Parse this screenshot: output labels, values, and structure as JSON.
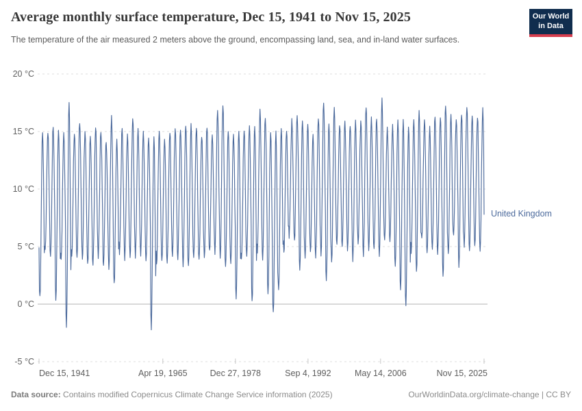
{
  "header": {
    "title": "Average monthly surface temperature, Dec 15, 1941 to Nov 15, 2025",
    "subtitle": "The temperature of the air measured 2 meters above the ground, encompassing land, sea, and in-land water surfaces.",
    "logo": {
      "line1": "Our World",
      "line2": "in Data"
    }
  },
  "footer": {
    "source_label": "Data source:",
    "source_text": " Contains modified Copernicus Climate Change Service information (2025)",
    "right_text": "OurWorldinData.org/climate-change | CC BY"
  },
  "chart_data": {
    "type": "line",
    "title": "Average monthly surface temperature, Dec 15, 1941 to Nov 15, 2025",
    "series_label": "United Kingdom",
    "unit": "°C",
    "ylim": [
      -5,
      20
    ],
    "grid": "dashed-horizontal",
    "y_ticks": [
      {
        "v": 20,
        "label": "20 °C"
      },
      {
        "v": 15,
        "label": "15 °C"
      },
      {
        "v": 10,
        "label": "10 °C"
      },
      {
        "v": 5,
        "label": "5 °C"
      },
      {
        "v": 0,
        "label": "0 °C"
      },
      {
        "v": -5,
        "label": "-5 °C"
      }
    ],
    "x_ticks": [
      {
        "year": 1941.958,
        "label": "Dec 15, 1941",
        "align": "left"
      },
      {
        "year": 1965.3,
        "label": "Apr 19, 1965",
        "align": "center"
      },
      {
        "year": 1978.99,
        "label": "Dec 27, 1978",
        "align": "center"
      },
      {
        "year": 1992.68,
        "label": "Sep 4, 1992",
        "align": "center"
      },
      {
        "year": 2006.36,
        "label": "May 14, 2006",
        "align": "center"
      },
      {
        "year": 2025.87,
        "label": "Nov 15, 2025",
        "align": "right"
      }
    ],
    "x_range_years": [
      1941.958,
      2025.875
    ],
    "start_point": {
      "date": "Dec 1941",
      "value": 4.9
    },
    "end_point": {
      "date": "Nov 2025",
      "value": 7.8
    },
    "years_start": 1942,
    "annual_extremes_note": "per calendar year [winter minimum °C, summer maximum °C] as read from the chart; monthly curve oscillates between them",
    "annual_extremes": [
      [
        0.6,
        15.0
      ],
      [
        4.6,
        14.9
      ],
      [
        4.2,
        15.3
      ],
      [
        0.2,
        15.2
      ],
      [
        4.0,
        14.8
      ],
      [
        -1.9,
        17.6
      ],
      [
        4.3,
        14.9
      ],
      [
        4.1,
        15.8
      ],
      [
        4.0,
        15.1
      ],
      [
        3.4,
        14.6
      ],
      [
        3.3,
        15.4
      ],
      [
        4.1,
        15.0
      ],
      [
        3.3,
        14.2
      ],
      [
        3.0,
        16.4
      ],
      [
        1.8,
        14.3
      ],
      [
        4.3,
        15.2
      ],
      [
        3.9,
        14.8
      ],
      [
        4.0,
        16.2
      ],
      [
        4.1,
        15.2
      ],
      [
        4.2,
        15.0
      ],
      [
        3.7,
        14.3
      ],
      [
        -2.1,
        14.6
      ],
      [
        3.5,
        15.1
      ],
      [
        3.7,
        14.4
      ],
      [
        3.6,
        14.9
      ],
      [
        4.2,
        15.3
      ],
      [
        3.9,
        15.0
      ],
      [
        3.3,
        15.5
      ],
      [
        3.2,
        15.6
      ],
      [
        4.0,
        15.3
      ],
      [
        3.8,
        14.6
      ],
      [
        4.0,
        15.3
      ],
      [
        4.6,
        14.8
      ],
      [
        4.3,
        16.8
      ],
      [
        4.0,
        17.2
      ],
      [
        3.3,
        14.9
      ],
      [
        3.6,
        14.7
      ],
      [
        0.3,
        15.0
      ],
      [
        3.9,
        15.0
      ],
      [
        4.1,
        15.4
      ],
      [
        0.2,
        15.5
      ],
      [
        4.4,
        16.8
      ],
      [
        3.9,
        16.1
      ],
      [
        1.0,
        14.9
      ],
      [
        -0.8,
        14.9
      ],
      [
        1.3,
        15.3
      ],
      [
        4.5,
        14.9
      ],
      [
        5.8,
        16.0
      ],
      [
        5.5,
        16.5
      ],
      [
        2.8,
        15.8
      ],
      [
        4.0,
        15.7
      ],
      [
        4.5,
        14.9
      ],
      [
        4.1,
        16.0
      ],
      [
        4.3,
        17.5
      ],
      [
        2.0,
        15.6
      ],
      [
        3.6,
        17.0
      ],
      [
        5.2,
        15.5
      ],
      [
        5.0,
        15.9
      ],
      [
        4.6,
        15.5
      ],
      [
        3.7,
        16.0
      ],
      [
        5.2,
        15.9
      ],
      [
        4.2,
        17.2
      ],
      [
        4.7,
        16.2
      ],
      [
        4.8,
        16.1
      ],
      [
        4.0,
        17.9
      ],
      [
        5.7,
        15.4
      ],
      [
        5.3,
        15.6
      ],
      [
        3.3,
        15.9
      ],
      [
        1.2,
        16.1
      ],
      [
        -0.2,
        15.5
      ],
      [
        4.5,
        15.9
      ],
      [
        2.8,
        16.8
      ],
      [
        5.6,
        16.0
      ],
      [
        4.4,
        15.5
      ],
      [
        4.8,
        16.3
      ],
      [
        4.4,
        16.2
      ],
      [
        2.4,
        17.3
      ],
      [
        4.5,
        16.4
      ],
      [
        5.9,
        16.0
      ],
      [
        3.2,
        16.5
      ],
      [
        5.0,
        17.2
      ],
      [
        4.7,
        16.5
      ],
      [
        5.1,
        16.2
      ],
      [
        4.6,
        17.0
      ]
    ],
    "colors": {
      "line": "#4C6A9C",
      "grid_dashed": "#dcdcdc",
      "zero_line": "#b3b3b3",
      "tick": "#c6c6c6",
      "axis_text": "#606060"
    }
  }
}
